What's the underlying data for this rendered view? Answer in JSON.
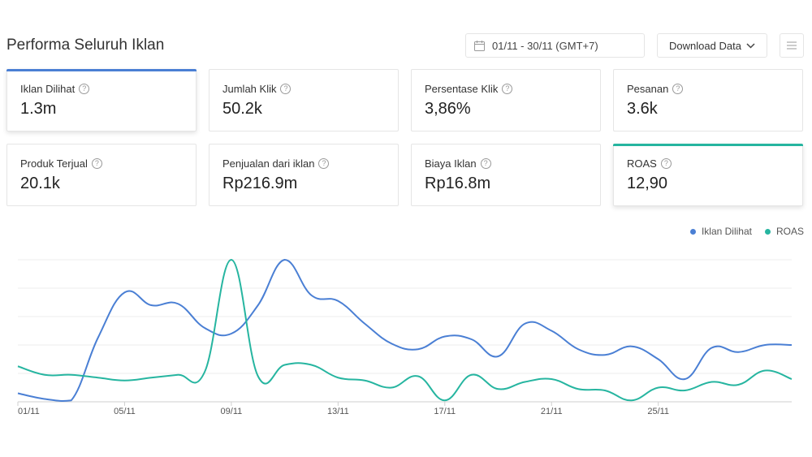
{
  "header": {
    "title": "Performa Seluruh Iklan",
    "date_range": "01/11 - 30/11 (GMT+7)",
    "download_label": "Download Data"
  },
  "metrics": [
    {
      "label": "Iklan Dilihat",
      "value": "1.3m",
      "accent": "#4a7fd4",
      "selected": true
    },
    {
      "label": "Jumlah Klik",
      "value": "50.2k",
      "selected": false
    },
    {
      "label": "Persentase Klik",
      "value": "3,86%",
      "selected": false
    },
    {
      "label": "Pesanan",
      "value": "3.6k",
      "selected": false
    },
    {
      "label": "Produk Terjual",
      "value": "20.1k",
      "selected": false
    },
    {
      "label": "Penjualan dari iklan",
      "value": "Rp216.9m",
      "selected": false
    },
    {
      "label": "Biaya Iklan",
      "value": "Rp16.8m",
      "selected": false
    },
    {
      "label": "ROAS",
      "value": "12,90",
      "accent": "#26b5a0",
      "selected": true
    }
  ],
  "icons": {
    "help": "?",
    "calendar": "calendar-icon",
    "chevron": "chevron-down-icon",
    "menu": "menu-icon"
  },
  "chart_data": {
    "type": "line",
    "x": [
      "01/11",
      "02/11",
      "03/11",
      "04/11",
      "05/11",
      "06/11",
      "07/11",
      "08/11",
      "09/11",
      "10/11",
      "11/11",
      "12/11",
      "13/11",
      "14/11",
      "15/11",
      "16/11",
      "17/11",
      "18/11",
      "19/11",
      "20/11",
      "21/11",
      "22/11",
      "23/11",
      "24/11",
      "25/11",
      "26/11",
      "27/11",
      "28/11",
      "29/11",
      "30/11"
    ],
    "tick_labels": [
      "01/11",
      "05/11",
      "09/11",
      "13/11",
      "17/11",
      "21/11",
      "25/11"
    ],
    "ylim": [
      0,
      100
    ],
    "grid": true,
    "legend_position": "top-right",
    "series": [
      {
        "name": "Iklan Dilihat",
        "color": "#4a7fd4",
        "values": [
          6,
          2,
          1,
          45,
          77,
          68,
          69,
          52,
          48,
          68,
          100,
          75,
          71,
          55,
          41,
          37,
          46,
          44,
          32,
          55,
          50,
          37,
          33,
          39,
          30,
          16,
          38,
          35,
          40,
          40
        ]
      },
      {
        "name": "ROAS",
        "color": "#26b5a0",
        "values": [
          25,
          19,
          19,
          17,
          15,
          17,
          19,
          21,
          100,
          18,
          26,
          26,
          17,
          15,
          10,
          18,
          1,
          19,
          9,
          14,
          16,
          9,
          8,
          1,
          10,
          8,
          14,
          12,
          22,
          16
        ]
      }
    ]
  }
}
